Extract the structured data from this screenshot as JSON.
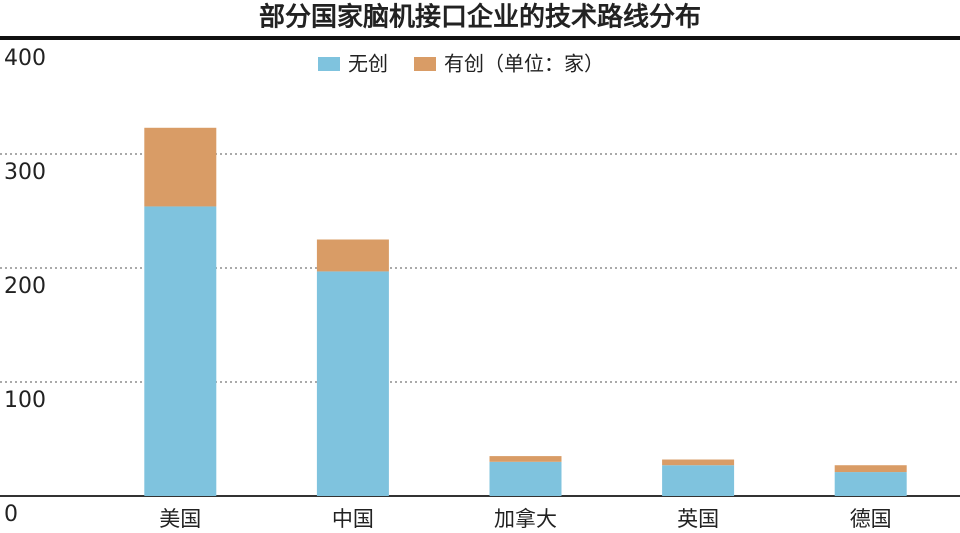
{
  "chart_data": {
    "type": "stacked_bar",
    "title": "部分国家脑机接口企业的技术路线分布",
    "categories": [
      "美国",
      "中国",
      "加拿大",
      "英国",
      "德国"
    ],
    "series": [
      {
        "name": "无创",
        "color": "#7fc3de",
        "values": [
          254,
          197,
          30,
          27,
          21
        ]
      },
      {
        "name": "有创（单位：家）",
        "color": "#d99c66",
        "values": [
          69,
          28,
          5,
          5,
          6
        ]
      }
    ],
    "ylim": [
      0,
      400
    ],
    "yticks": [
      0,
      100,
      200,
      300,
      400
    ],
    "grid": true
  }
}
